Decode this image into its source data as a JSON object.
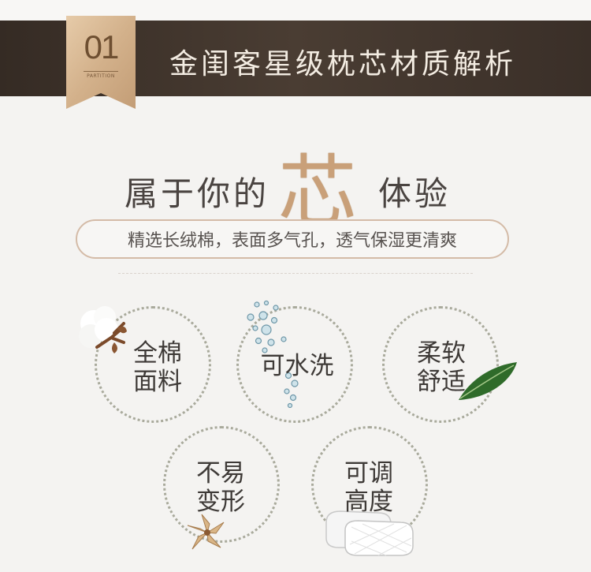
{
  "header": {
    "badge_number": "01",
    "badge_subtitle": "PARTITION",
    "title": "金闺客星级枕芯材质解析"
  },
  "headline": {
    "left": "属于你的",
    "highlight": "芯",
    "right": "体验"
  },
  "subtitle": "精选长绒棉，表面多气孔，透气保湿更清爽",
  "features": [
    {
      "line1": "全棉",
      "line2": "面料",
      "icon": "cotton-icon"
    },
    {
      "line1": "可水洗",
      "line2": "",
      "icon": "water-drops-icon"
    },
    {
      "line1": "柔软",
      "line2": "舒适",
      "icon": "leaf-icon"
    },
    {
      "line1": "不易",
      "line2": "变形",
      "icon": "flower-icon"
    },
    {
      "line1": "可调",
      "line2": "高度",
      "icon": "pillow-icon"
    }
  ],
  "colors": {
    "title_bar": "#3f342c",
    "badge": "#d6b692",
    "accent": "#c9a079",
    "leaf": "#2f6b2a"
  }
}
